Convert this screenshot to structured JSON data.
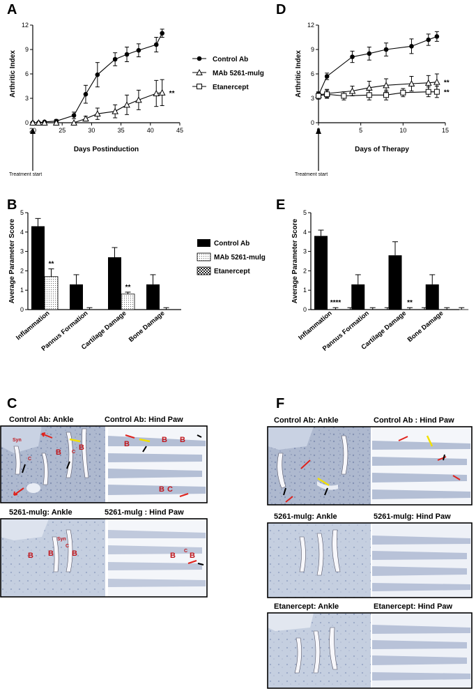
{
  "panels": {
    "A": "A",
    "B": "B",
    "C": "C",
    "D": "D",
    "E": "E",
    "F": "F"
  },
  "legend_line": [
    {
      "label": "Control Ab",
      "marker": "circle"
    },
    {
      "label": "MAb 5261-mulg",
      "marker": "triangle"
    },
    {
      "label": "Etanercept",
      "marker": "square"
    }
  ],
  "legend_bar": [
    {
      "label": "Control Ab",
      "fill": "solid"
    },
    {
      "label": "MAb 5261-mulg",
      "fill": "dots"
    },
    {
      "label": "Etanercept",
      "fill": "checker"
    }
  ],
  "annotations": {
    "treatment_a": "Treatment start",
    "treatment_d": "Treatment start"
  },
  "chart_data": [
    {
      "id": "A",
      "type": "line",
      "xlabel": "Days Postinduction",
      "ylabel": "Arthritic Index",
      "xlim": [
        20,
        45
      ],
      "ylim": [
        0,
        12
      ],
      "xticks": [
        20,
        25,
        30,
        35,
        40,
        45
      ],
      "yticks": [
        0,
        3,
        6,
        9,
        12
      ],
      "series": [
        {
          "name": "Control Ab",
          "marker": "circle",
          "x": [
            20,
            21,
            22,
            24,
            27,
            29,
            31,
            34,
            36,
            38,
            41,
            42
          ],
          "y": [
            0,
            0,
            0.1,
            0.2,
            0.9,
            3.5,
            5.9,
            7.8,
            8.4,
            8.9,
            9.6,
            11.0
          ],
          "err": [
            0,
            0,
            0,
            0.2,
            0.4,
            1.1,
            1.5,
            0.8,
            0.9,
            0.8,
            0.9,
            0.5
          ]
        },
        {
          "name": "MAb 5261-mulg",
          "marker": "triangle",
          "x": [
            20,
            21,
            22,
            24,
            27,
            29,
            31,
            34,
            36,
            38,
            41,
            42
          ],
          "y": [
            0,
            0,
            0,
            0,
            0,
            0.5,
            1.1,
            1.4,
            2.2,
            2.8,
            3.6,
            3.7
          ],
          "err": [
            0,
            0,
            0,
            0,
            0,
            0.3,
            0.7,
            0.8,
            1.2,
            1.2,
            1.6,
            1.6
          ]
        }
      ],
      "annotations": [
        {
          "x": 42,
          "y": 3.7,
          "text": "**"
        }
      ]
    },
    {
      "id": "D",
      "type": "line",
      "xlabel": "Days of Therapy",
      "ylabel": "Arthritic Index",
      "xlim": [
        0,
        15
      ],
      "ylim": [
        0,
        12
      ],
      "xticks": [
        0,
        5,
        10,
        15
      ],
      "yticks": [
        0,
        3,
        6,
        9,
        12
      ],
      "series": [
        {
          "name": "Control Ab",
          "marker": "circle",
          "x": [
            0,
            1,
            4,
            6,
            8,
            11,
            13,
            14
          ],
          "y": [
            3.4,
            5.7,
            8.1,
            8.5,
            9.0,
            9.4,
            10.2,
            10.6
          ],
          "err": [
            0.3,
            0.4,
            0.7,
            0.8,
            0.8,
            0.9,
            0.7,
            0.6
          ]
        },
        {
          "name": "MAb 5261-mulg",
          "marker": "triangle",
          "x": [
            0,
            1,
            4,
            6,
            8,
            11,
            13,
            14
          ],
          "y": [
            3.4,
            3.6,
            3.9,
            4.3,
            4.6,
            4.8,
            4.9,
            5.0
          ],
          "err": [
            0.4,
            0.5,
            0.6,
            0.8,
            0.8,
            0.9,
            0.9,
            1.0
          ]
        },
        {
          "name": "Etanercept",
          "marker": "square",
          "x": [
            0,
            1,
            3,
            6,
            8,
            10,
            13,
            14
          ],
          "y": [
            3.3,
            3.5,
            3.3,
            3.4,
            3.4,
            3.7,
            3.8,
            3.8
          ],
          "err": [
            0.4,
            0.5,
            0.5,
            0.6,
            0.6,
            0.5,
            0.6,
            0.7
          ]
        }
      ],
      "annotations": [
        {
          "x": 14,
          "y": 5.0,
          "text": "**"
        },
        {
          "x": 14,
          "y": 3.8,
          "text": "**"
        }
      ]
    },
    {
      "id": "B",
      "type": "bar",
      "ylabel": "Average Parameter Score",
      "ylim": [
        0,
        5
      ],
      "yticks": [
        0,
        1,
        2,
        3,
        4,
        5
      ],
      "categories": [
        "Inflammation",
        "Pannus Formation",
        "Cartilage Damage",
        "Bone Damage"
      ],
      "series": [
        {
          "name": "Control Ab",
          "values": [
            4.3,
            1.3,
            2.7,
            1.3
          ],
          "err": [
            0.4,
            0.5,
            0.5,
            0.5
          ]
        },
        {
          "name": "MAb 5261-mulg",
          "values": [
            1.7,
            0.0,
            0.8,
            0.0
          ],
          "err": [
            0.4,
            0.1,
            0.1,
            0.1
          ]
        }
      ],
      "annotations": [
        {
          "category": "Inflammation",
          "text": "**"
        },
        {
          "category": "Cartilage Damage",
          "text": "**"
        }
      ]
    },
    {
      "id": "E",
      "type": "bar",
      "ylabel": "Average Parameter Score",
      "ylim": [
        0,
        5
      ],
      "yticks": [
        0,
        1,
        2,
        3,
        4,
        5
      ],
      "categories": [
        "Inflammation",
        "Pannus Formation",
        "Cartilage Damage",
        "Bone Damage"
      ],
      "series": [
        {
          "name": "Control Ab",
          "values": [
            3.8,
            1.3,
            2.8,
            1.3
          ],
          "err": [
            0.3,
            0.5,
            0.7,
            0.5
          ]
        },
        {
          "name": "MAb 5261-mulg",
          "values": [
            0.0,
            0.0,
            0.0,
            0.0
          ],
          "err": [
            0.1,
            0.1,
            0.1,
            0.1
          ]
        },
        {
          "name": "Etanercept",
          "values": [
            0.0,
            0.0,
            0.0,
            0.0
          ],
          "err": [
            0.1,
            0.1,
            0.1,
            0.1
          ]
        }
      ],
      "annotations": [
        {
          "category": "Inflammation",
          "text": "****"
        },
        {
          "category": "Cartilage Damage",
          "text": "**"
        }
      ]
    }
  ],
  "histology": {
    "C": {
      "captions": [
        "Control Ab: Ankle",
        "Control Ab: Hind Paw",
        "5261-mulg: Ankle",
        "5261-mulg : Hind Paw"
      ],
      "marks": {
        "syn": "Syn",
        "b": "B",
        "c": "C"
      }
    },
    "F": {
      "captions": [
        "Control Ab: Ankle",
        "Control Ab : Hind Paw",
        "5261-mulg: Ankle",
        "5261-mulg: Hind Paw",
        "Etanercept: Ankle",
        "Etanercept: Hind Paw"
      ]
    }
  }
}
